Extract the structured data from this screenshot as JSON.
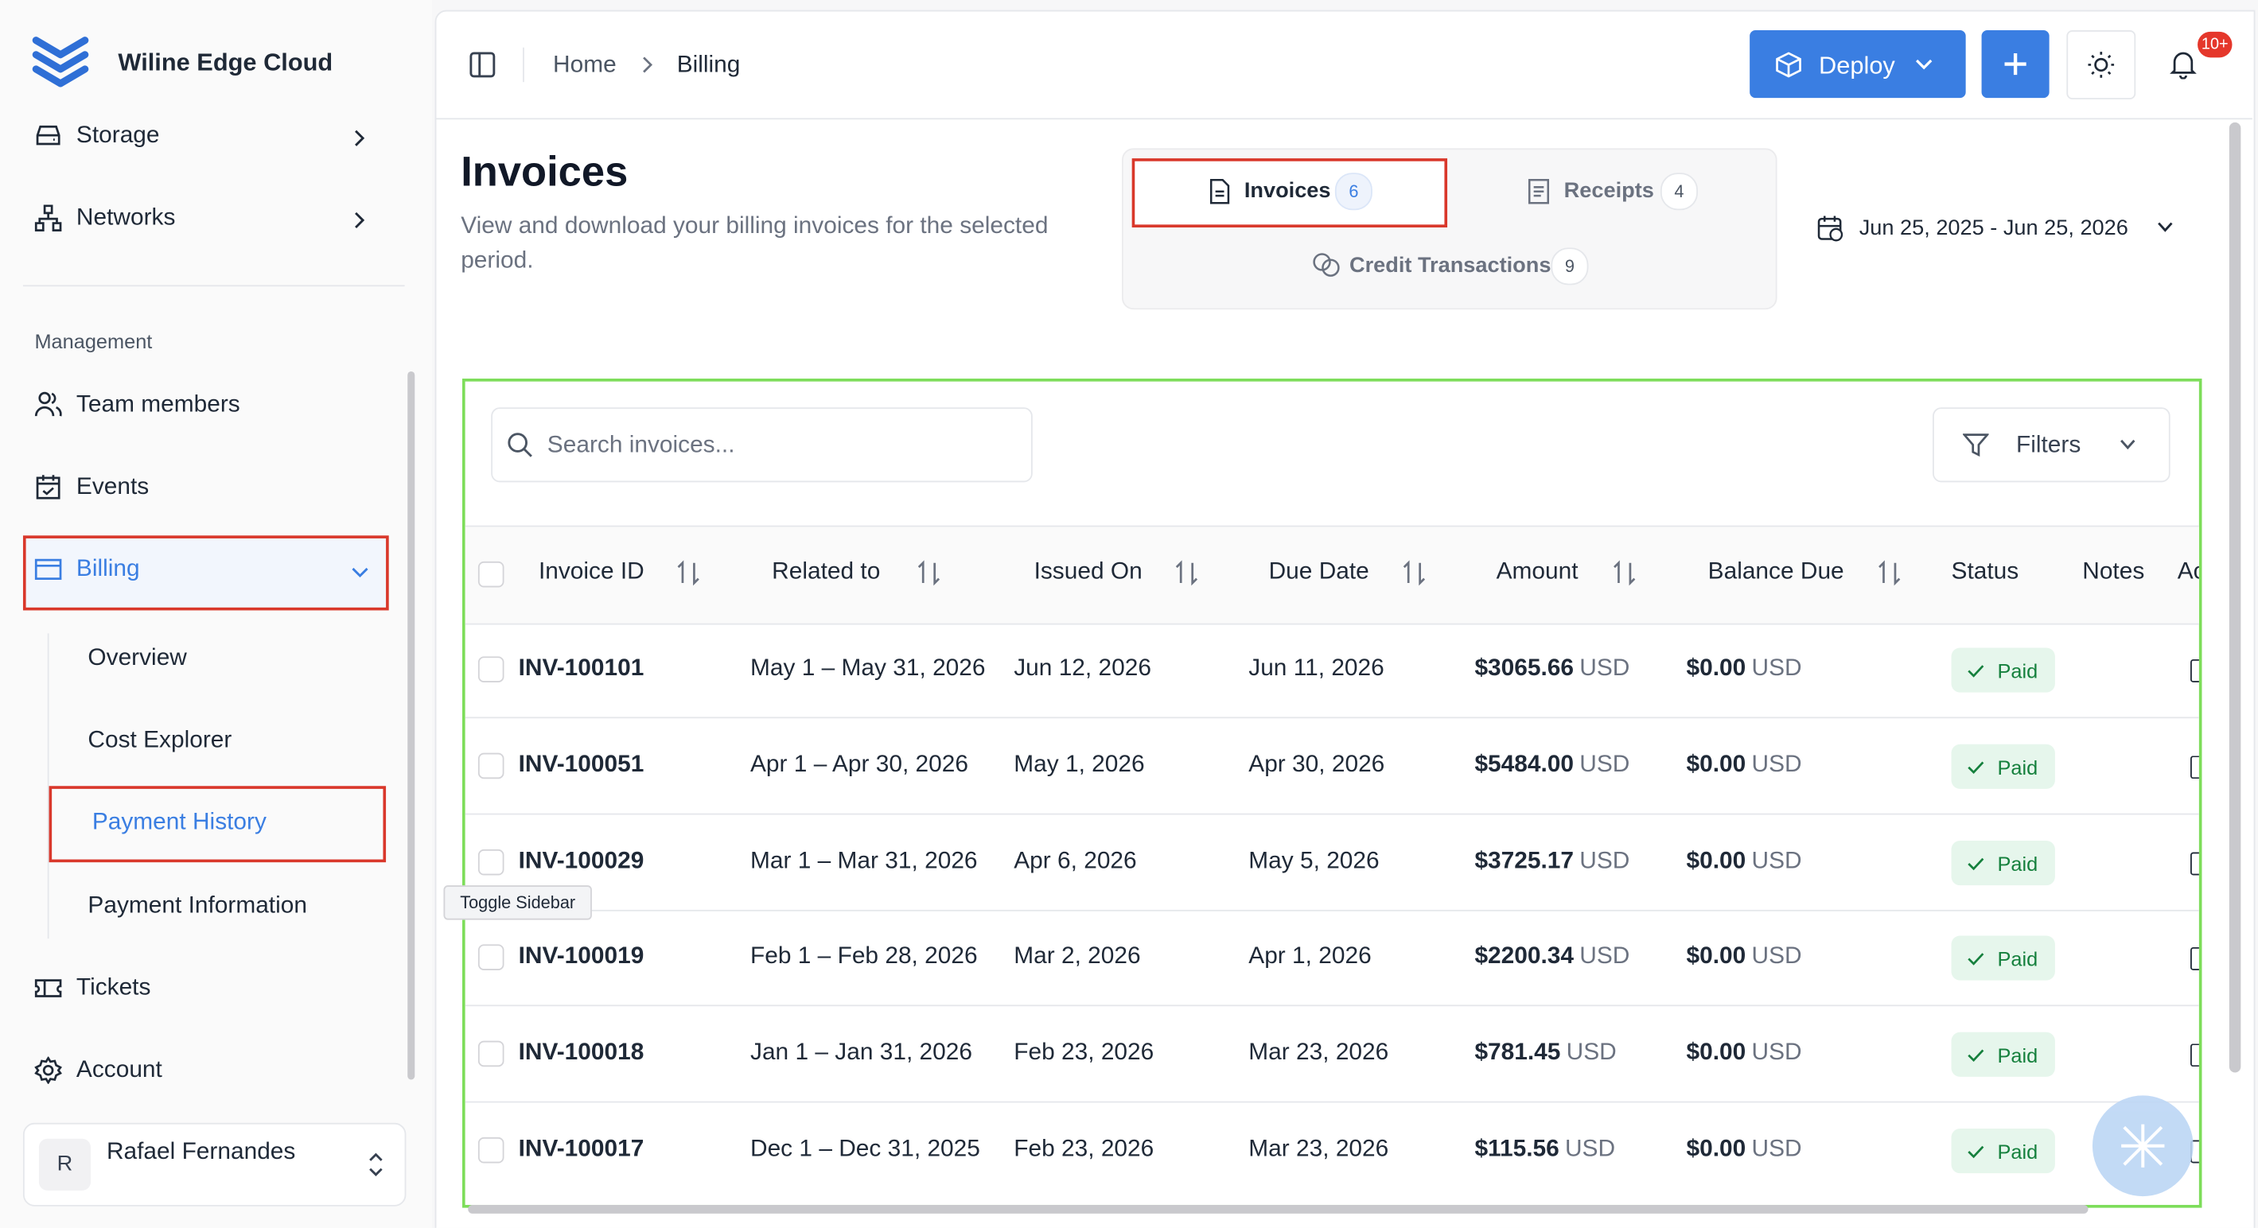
{
  "app_name": "Wiline Edge Cloud",
  "sidebar": {
    "items_top": [
      "Storage",
      "Networks"
    ],
    "section_label": "Management",
    "items": [
      "Team members",
      "Events",
      "Billing"
    ],
    "billing_sub": [
      "Overview",
      "Cost Explorer",
      "Payment History",
      "Payment Information"
    ],
    "items_bottom": [
      "Tickets",
      "Account"
    ],
    "user": {
      "avatar": "R",
      "name": "Rafael Fernandes"
    }
  },
  "header": {
    "breadcrumb": [
      "Home",
      "Billing"
    ],
    "deploy": "Deploy",
    "notification_badge": "10+"
  },
  "page": {
    "title": "Invoices",
    "description": "View and download your billing invoices for the selected period.",
    "tabs": [
      {
        "label": "Invoices",
        "count": "6"
      },
      {
        "label": "Receipts",
        "count": "4"
      },
      {
        "label": "Credit Transactions",
        "count": "9"
      }
    ],
    "date_range": "Jun 25, 2025 - Jun 25, 2026"
  },
  "tooltip": "Toggle Sidebar",
  "table": {
    "search_placeholder": "Search invoices...",
    "filters": "Filters",
    "columns": [
      "Invoice ID",
      "Related to",
      "Issued On",
      "Due Date",
      "Amount",
      "Balance Due",
      "Status",
      "Notes",
      "Ac"
    ],
    "currency": "USD",
    "rows": [
      [
        "INV-100101",
        "May 1 – May 31, 2026",
        "Jun 12, 2026",
        "Jun 11, 2026",
        "$3065.66",
        "$0.00",
        "Paid"
      ],
      [
        "INV-100051",
        "Apr 1 – Apr 30, 2026",
        "May 1, 2026",
        "Apr 30, 2026",
        "$5484.00",
        "$0.00",
        "Paid"
      ],
      [
        "INV-100029",
        "Mar 1 – Mar 31, 2026",
        "Apr 6, 2026",
        "May 5, 2026",
        "$3725.17",
        "$0.00",
        "Paid"
      ],
      [
        "INV-100019",
        "Feb 1 – Feb 28, 2026",
        "Mar 2, 2026",
        "Apr 1, 2026",
        "$2200.34",
        "$0.00",
        "Paid"
      ],
      [
        "INV-100018",
        "Jan 1 – Jan 31, 2026",
        "Feb 23, 2026",
        "Mar 23, 2026",
        "$781.45",
        "$0.00",
        "Paid"
      ],
      [
        "INV-100017",
        "Dec 1 – Dec 31, 2025",
        "Feb 23, 2026",
        "Mar 23, 2026",
        "$115.56",
        "$0.00",
        "Paid"
      ]
    ]
  }
}
